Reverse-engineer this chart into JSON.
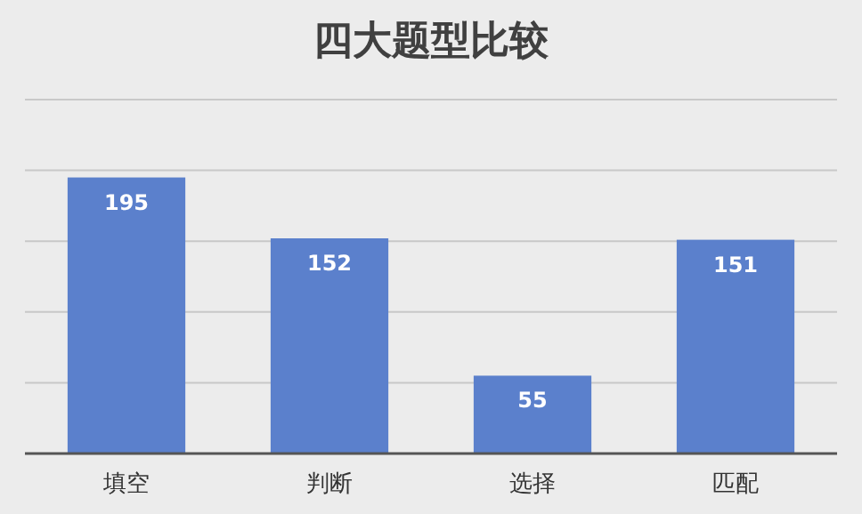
{
  "chart_data": {
    "type": "bar",
    "title": "四大题型比较",
    "categories": [
      "填空",
      "判断",
      "选择",
      "匹配"
    ],
    "values": [
      195,
      152,
      55,
      151
    ],
    "color": "#5b80cc",
    "ylim": [
      0,
      250
    ],
    "yticks": [
      {
        "value": 0,
        "label": null
      },
      {
        "value": 50,
        "label": null
      },
      {
        "value": 100,
        "label": null
      },
      {
        "value": 150,
        "label": null
      },
      {
        "value": 200,
        "label": null
      },
      {
        "value": 250,
        "label": null
      }
    ],
    "grid": "y",
    "tick_labels": "x",
    "data_labels": true
  }
}
